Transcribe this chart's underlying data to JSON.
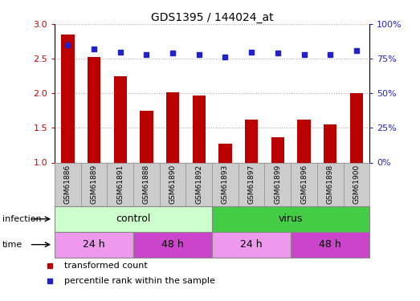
{
  "title": "GDS1395 / 144024_at",
  "samples": [
    "GSM61886",
    "GSM61889",
    "GSM61891",
    "GSM61888",
    "GSM61890",
    "GSM61892",
    "GSM61893",
    "GSM61897",
    "GSM61899",
    "GSM61896",
    "GSM61898",
    "GSM61900"
  ],
  "transformed_count": [
    2.85,
    2.52,
    2.25,
    1.75,
    2.02,
    1.97,
    1.27,
    1.62,
    1.37,
    1.62,
    1.55,
    2.0
  ],
  "percentile_rank": [
    85,
    82,
    80,
    78,
    79,
    78,
    76,
    80,
    79,
    78,
    78,
    81
  ],
  "ylim_left": [
    1.0,
    3.0
  ],
  "ylim_right": [
    0,
    100
  ],
  "yticks_left": [
    1.0,
    1.5,
    2.0,
    2.5,
    3.0
  ],
  "yticks_right": [
    0,
    25,
    50,
    75,
    100
  ],
  "bar_color": "#bb0000",
  "dot_color": "#2222cc",
  "infection_labels": [
    {
      "label": "control",
      "start": 0,
      "end": 6,
      "color": "#ccffcc"
    },
    {
      "label": "virus",
      "start": 6,
      "end": 12,
      "color": "#44cc44"
    }
  ],
  "time_labels": [
    {
      "label": "24 h",
      "start": 0,
      "end": 3,
      "color": "#ee99ee"
    },
    {
      "label": "48 h",
      "start": 3,
      "end": 6,
      "color": "#cc44cc"
    },
    {
      "label": "24 h",
      "start": 6,
      "end": 9,
      "color": "#ee99ee"
    },
    {
      "label": "48 h",
      "start": 9,
      "end": 12,
      "color": "#cc44cc"
    }
  ],
  "legend_items": [
    {
      "label": "transformed count",
      "color": "#bb0000"
    },
    {
      "label": "percentile rank within the sample",
      "color": "#2222cc"
    }
  ],
  "grid_color": "#aaaaaa",
  "left_axis_color": "#cc0000",
  "right_axis_color": "#2222cc",
  "bg_color": "#ffffff",
  "sample_bg_color": "#cccccc",
  "border_color": "#888888"
}
